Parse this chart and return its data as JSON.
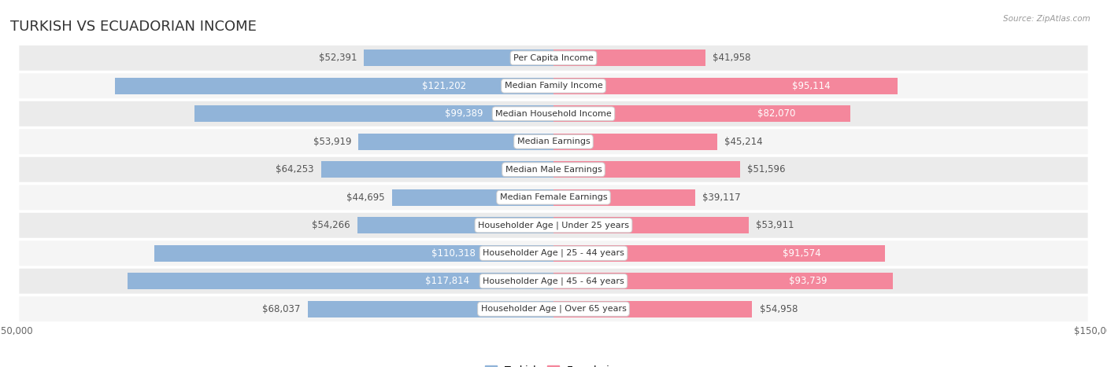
{
  "title": "TURKISH VS ECUADORIAN INCOME",
  "source": "Source: ZipAtlas.com",
  "categories": [
    "Per Capita Income",
    "Median Family Income",
    "Median Household Income",
    "Median Earnings",
    "Median Male Earnings",
    "Median Female Earnings",
    "Householder Age | Under 25 years",
    "Householder Age | 25 - 44 years",
    "Householder Age | 45 - 64 years",
    "Householder Age | Over 65 years"
  ],
  "turkish_values": [
    52391,
    121202,
    99389,
    53919,
    64253,
    44695,
    54266,
    110318,
    117814,
    68037
  ],
  "ecuadorian_values": [
    41958,
    95114,
    82070,
    45214,
    51596,
    39117,
    53911,
    91574,
    93739,
    54958
  ],
  "turkish_labels": [
    "$52,391",
    "$121,202",
    "$99,389",
    "$53,919",
    "$64,253",
    "$44,695",
    "$54,266",
    "$110,318",
    "$117,814",
    "$68,037"
  ],
  "ecuadorian_labels": [
    "$41,958",
    "$95,114",
    "$82,070",
    "$45,214",
    "$51,596",
    "$39,117",
    "$53,911",
    "$91,574",
    "$93,739",
    "$54,958"
  ],
  "turkish_color": "#91b4d9",
  "ecuadorian_color": "#f4879c",
  "white_label_threshold": 80000,
  "max_value": 150000,
  "background_color": "#ffffff",
  "row_bg_color": "#e8e8e8",
  "row_bg_odd_color": "#f0f0f0",
  "title_fontsize": 13,
  "label_fontsize": 8.5,
  "category_fontsize": 8,
  "axis_label_fontsize": 8.5,
  "legend_fontsize": 9
}
